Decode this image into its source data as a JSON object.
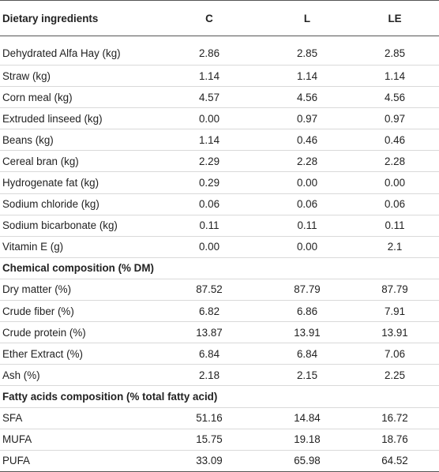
{
  "table": {
    "headers": [
      "Dietary ingredients",
      "C",
      "L",
      "LE"
    ],
    "rows": [
      {
        "type": "data",
        "label": "Dehydrated Alfa Hay (kg)",
        "values": [
          "2.86",
          "2.85",
          "2.85"
        ]
      },
      {
        "type": "data",
        "label": "Straw (kg)",
        "values": [
          "1.14",
          "1.14",
          "1.14"
        ]
      },
      {
        "type": "data",
        "label": "Corn meal (kg)",
        "values": [
          "4.57",
          "4.56",
          "4.56"
        ]
      },
      {
        "type": "data",
        "label": "Extruded linseed (kg)",
        "values": [
          "0.00",
          "0.97",
          "0.97"
        ]
      },
      {
        "type": "data",
        "label": "Beans (kg)",
        "values": [
          "1.14",
          "0.46",
          "0.46"
        ]
      },
      {
        "type": "data",
        "label": "Cereal bran (kg)",
        "values": [
          "2.29",
          "2.28",
          "2.28"
        ]
      },
      {
        "type": "data",
        "label": "Hydrogenate fat (kg)",
        "values": [
          "0.29",
          "0.00",
          "0.00"
        ]
      },
      {
        "type": "data",
        "label": "Sodium chloride (kg)",
        "values": [
          "0.06",
          "0.06",
          "0.06"
        ]
      },
      {
        "type": "data",
        "label": "Sodium bicarbonate (kg)",
        "values": [
          "0.11",
          "0.11",
          "0.11"
        ]
      },
      {
        "type": "data",
        "label": "Vitamin E (g)",
        "values": [
          "0.00",
          "0.00",
          "2.1"
        ]
      },
      {
        "type": "section",
        "label": "Chemical composition (% DM)"
      },
      {
        "type": "data",
        "label": "Dry matter (%)",
        "values": [
          "87.52",
          "87.79",
          "87.79"
        ]
      },
      {
        "type": "data",
        "label": "Crude fiber (%)",
        "values": [
          "6.82",
          "6.86",
          "7.91"
        ]
      },
      {
        "type": "data",
        "label": "Crude protein (%)",
        "values": [
          "13.87",
          "13.91",
          "13.91"
        ]
      },
      {
        "type": "data",
        "label": "Ether Extract (%)",
        "values": [
          "6.84",
          "6.84",
          "7.06"
        ]
      },
      {
        "type": "data",
        "label": "Ash (%)",
        "values": [
          "2.18",
          "2.15",
          "2.25"
        ]
      },
      {
        "type": "section",
        "label": "Fatty acids composition (% total fatty acid)"
      },
      {
        "type": "data",
        "label": "SFA",
        "values": [
          "51.16",
          "14.84",
          "16.72"
        ]
      },
      {
        "type": "data",
        "label": "MUFA",
        "values": [
          "15.75",
          "19.18",
          "18.76"
        ]
      },
      {
        "type": "data",
        "label": "PUFA",
        "values": [
          "33.09",
          "65.98",
          "64.52"
        ]
      }
    ]
  }
}
